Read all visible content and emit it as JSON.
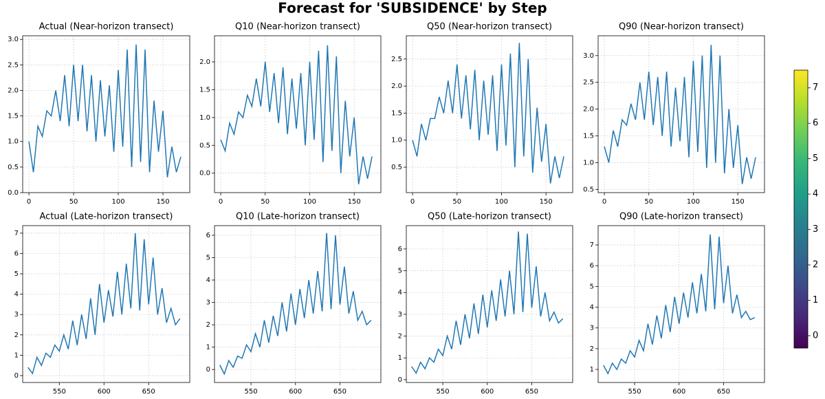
{
  "title": "Forecast for 'SUBSIDENCE' by Step",
  "chart_data": [
    {
      "type": "line",
      "title": "Actual (Near-horizon transect)",
      "color": "#1f77b4",
      "grid": true,
      "x": [
        0,
        5,
        10,
        15,
        20,
        25,
        30,
        35,
        40,
        45,
        50,
        55,
        60,
        65,
        70,
        75,
        80,
        85,
        90,
        95,
        100,
        105,
        110,
        115,
        120,
        125,
        130,
        135,
        140,
        145,
        150,
        155,
        160,
        165,
        170
      ],
      "values": [
        1.0,
        0.4,
        1.3,
        1.1,
        1.6,
        1.5,
        2.0,
        1.4,
        2.3,
        1.3,
        2.5,
        1.4,
        2.5,
        1.2,
        2.3,
        1.0,
        2.2,
        1.1,
        2.1,
        0.8,
        2.4,
        0.9,
        2.8,
        0.5,
        2.9,
        0.6,
        2.8,
        0.4,
        1.8,
        0.8,
        1.6,
        0.3,
        0.9,
        0.4,
        0.7
      ],
      "xlim": [
        -7,
        180
      ],
      "xticks": [
        0,
        50,
        100,
        150
      ],
      "ylim": [
        0,
        3.07
      ],
      "yticks": [
        {
          "value": 0,
          "label": "0.0"
        },
        {
          "value": 0.5,
          "label": "0.5"
        },
        {
          "value": 1,
          "label": "1.0"
        },
        {
          "value": 1.5,
          "label": "1.5"
        },
        {
          "value": 2,
          "label": "2.0"
        },
        {
          "value": 2.5,
          "label": "2.5"
        },
        {
          "value": 3,
          "label": "3.0"
        }
      ]
    },
    {
      "type": "line",
      "title": "Q10 (Near-horizon transect)",
      "color": "#1f77b4",
      "grid": true,
      "x": [
        0,
        5,
        10,
        15,
        20,
        25,
        30,
        35,
        40,
        45,
        50,
        55,
        60,
        65,
        70,
        75,
        80,
        85,
        90,
        95,
        100,
        105,
        110,
        115,
        120,
        125,
        130,
        135,
        140,
        145,
        150,
        155,
        160,
        165,
        170
      ],
      "values": [
        0.6,
        0.4,
        0.9,
        0.7,
        1.1,
        1.0,
        1.4,
        1.2,
        1.7,
        1.2,
        2.0,
        1.1,
        1.8,
        0.9,
        1.9,
        0.7,
        1.7,
        0.8,
        1.8,
        0.5,
        2.0,
        0.6,
        2.2,
        0.2,
        2.3,
        0.4,
        2.1,
        0.0,
        1.3,
        0.3,
        1.0,
        -0.2,
        0.3,
        -0.1,
        0.3
      ],
      "xlim": [
        -7,
        180
      ],
      "xticks": [
        0,
        50,
        100,
        150
      ],
      "ylim": [
        -0.35,
        2.47
      ],
      "yticks": [
        {
          "value": 0,
          "label": "0.0"
        },
        {
          "value": 0.5,
          "label": "0.5"
        },
        {
          "value": 1,
          "label": "1.0"
        },
        {
          "value": 1.5,
          "label": "1.5"
        },
        {
          "value": 2,
          "label": "2.0"
        }
      ]
    },
    {
      "type": "line",
      "title": "Q50 (Near-horizon transect)",
      "color": "#1f77b4",
      "grid": true,
      "x": [
        0,
        5,
        10,
        15,
        20,
        25,
        30,
        35,
        40,
        45,
        50,
        55,
        60,
        65,
        70,
        75,
        80,
        85,
        90,
        95,
        100,
        105,
        110,
        115,
        120,
        125,
        130,
        135,
        140,
        145,
        150,
        155,
        160,
        165,
        170
      ],
      "values": [
        1.0,
        0.7,
        1.3,
        1.0,
        1.4,
        1.4,
        1.8,
        1.5,
        2.1,
        1.5,
        2.4,
        1.4,
        2.2,
        1.2,
        2.3,
        1.0,
        2.1,
        1.1,
        2.2,
        0.8,
        2.4,
        0.9,
        2.6,
        0.5,
        2.8,
        0.7,
        2.5,
        0.4,
        1.6,
        0.6,
        1.3,
        0.2,
        0.7,
        0.3,
        0.7
      ],
      "xlim": [
        -7,
        180
      ],
      "xticks": [
        0,
        50,
        100,
        150
      ],
      "ylim": [
        0.03,
        2.93
      ],
      "yticks": [
        {
          "value": 0.5,
          "label": "0.5"
        },
        {
          "value": 1,
          "label": "1.0"
        },
        {
          "value": 1.5,
          "label": "1.5"
        },
        {
          "value": 2,
          "label": "2.0"
        },
        {
          "value": 2.5,
          "label": "2.5"
        }
      ]
    },
    {
      "type": "line",
      "title": "Q90 (Near-horizon transect)",
      "color": "#1f77b4",
      "grid": true,
      "x": [
        0,
        5,
        10,
        15,
        20,
        25,
        30,
        35,
        40,
        45,
        50,
        55,
        60,
        65,
        70,
        75,
        80,
        85,
        90,
        95,
        100,
        105,
        110,
        115,
        120,
        125,
        130,
        135,
        140,
        145,
        150,
        155,
        160,
        165,
        170
      ],
      "values": [
        1.3,
        1.0,
        1.6,
        1.3,
        1.8,
        1.7,
        2.1,
        1.8,
        2.5,
        1.8,
        2.7,
        1.7,
        2.6,
        1.5,
        2.7,
        1.3,
        2.4,
        1.4,
        2.6,
        1.1,
        2.9,
        1.2,
        3.0,
        0.9,
        3.2,
        1.0,
        3.0,
        0.8,
        2.0,
        0.9,
        1.7,
        0.6,
        1.1,
        0.7,
        1.1
      ],
      "xlim": [
        -7,
        180
      ],
      "xticks": [
        0,
        50,
        100,
        150
      ],
      "ylim": [
        0.44,
        3.37
      ],
      "yticks": [
        {
          "value": 0.5,
          "label": "0.5"
        },
        {
          "value": 1,
          "label": "1.0"
        },
        {
          "value": 1.5,
          "label": "1.5"
        },
        {
          "value": 2,
          "label": "2.0"
        },
        {
          "value": 2.5,
          "label": "2.5"
        },
        {
          "value": 3,
          "label": "3.0"
        }
      ]
    },
    {
      "type": "line",
      "title": "Actual (Late-horizon transect)",
      "color": "#1f77b4",
      "grid": true,
      "x": [
        515,
        520,
        525,
        530,
        535,
        540,
        545,
        550,
        555,
        560,
        565,
        570,
        575,
        580,
        585,
        590,
        595,
        600,
        605,
        610,
        615,
        620,
        625,
        630,
        635,
        640,
        645,
        650,
        655,
        660,
        665,
        670,
        675,
        680,
        685
      ],
      "values": [
        0.4,
        0.1,
        0.9,
        0.5,
        1.1,
        0.9,
        1.5,
        1.2,
        2.0,
        1.3,
        2.7,
        1.5,
        3.0,
        1.8,
        3.8,
        2.0,
        4.5,
        2.6,
        4.2,
        2.9,
        5.1,
        3.0,
        5.5,
        3.3,
        7.0,
        3.2,
        6.7,
        3.5,
        5.8,
        3.0,
        4.3,
        2.6,
        3.3,
        2.5,
        2.8
      ],
      "xlim": [
        509,
        696
      ],
      "xticks": [
        550,
        600,
        650
      ],
      "ylim": [
        -0.34,
        7.37
      ],
      "yticks": [
        0,
        1,
        2,
        3,
        4,
        5,
        6,
        7
      ]
    },
    {
      "type": "line",
      "title": "Q10 (Late-horizon transect)",
      "color": "#1f77b4",
      "grid": true,
      "x": [
        515,
        520,
        525,
        530,
        535,
        540,
        545,
        550,
        555,
        560,
        565,
        570,
        575,
        580,
        585,
        590,
        595,
        600,
        605,
        610,
        615,
        620,
        625,
        630,
        635,
        640,
        645,
        650,
        655,
        660,
        665,
        670,
        675,
        680,
        685
      ],
      "values": [
        0.2,
        -0.2,
        0.4,
        0.1,
        0.6,
        0.5,
        1.1,
        0.8,
        1.6,
        1.0,
        2.2,
        1.2,
        2.4,
        1.5,
        3.0,
        1.7,
        3.4,
        2.0,
        3.6,
        2.3,
        4.0,
        2.5,
        4.4,
        2.6,
        6.1,
        2.7,
        6.0,
        2.9,
        4.6,
        2.5,
        3.5,
        2.2,
        2.6,
        2.0,
        2.2
      ],
      "xlim": [
        509,
        696
      ],
      "xticks": [
        550,
        600,
        650
      ],
      "ylim": [
        -0.58,
        6.43
      ],
      "yticks": [
        0,
        1,
        2,
        3,
        4,
        5,
        6
      ]
    },
    {
      "type": "line",
      "title": "Q50 (Late-horizon transect)",
      "color": "#1f77b4",
      "grid": true,
      "x": [
        515,
        520,
        525,
        530,
        535,
        540,
        545,
        550,
        555,
        560,
        565,
        570,
        575,
        580,
        585,
        590,
        595,
        600,
        605,
        610,
        615,
        620,
        625,
        630,
        635,
        640,
        645,
        650,
        655,
        660,
        665,
        670,
        675,
        680,
        685
      ],
      "values": [
        0.6,
        0.3,
        0.8,
        0.5,
        1.0,
        0.8,
        1.4,
        1.1,
        2.0,
        1.4,
        2.7,
        1.6,
        3.0,
        1.9,
        3.5,
        2.1,
        3.9,
        2.4,
        4.1,
        2.7,
        4.6,
        2.9,
        5.0,
        3.0,
        6.8,
        3.1,
        6.7,
        3.3,
        5.2,
        2.9,
        4.0,
        2.7,
        3.1,
        2.6,
        2.8
      ],
      "xlim": [
        509,
        696
      ],
      "xticks": [
        550,
        600,
        650
      ],
      "ylim": [
        -0.13,
        7.07
      ],
      "yticks": [
        0,
        1,
        2,
        3,
        4,
        5,
        6
      ]
    },
    {
      "type": "line",
      "title": "Q90 (Late-horizon transect)",
      "color": "#1f77b4",
      "grid": true,
      "x": [
        515,
        520,
        525,
        530,
        535,
        540,
        545,
        550,
        555,
        560,
        565,
        570,
        575,
        580,
        585,
        590,
        595,
        600,
        605,
        610,
        615,
        620,
        625,
        630,
        635,
        640,
        645,
        650,
        655,
        660,
        665,
        670,
        675,
        680,
        685
      ],
      "values": [
        1.2,
        0.8,
        1.3,
        1.0,
        1.5,
        1.3,
        1.9,
        1.6,
        2.4,
        1.9,
        3.2,
        2.2,
        3.6,
        2.5,
        4.1,
        2.8,
        4.5,
        3.2,
        4.7,
        3.5,
        5.2,
        3.7,
        5.6,
        3.8,
        7.5,
        3.9,
        7.4,
        4.2,
        6.0,
        3.7,
        4.6,
        3.5,
        3.8,
        3.4,
        3.5
      ],
      "xlim": [
        509,
        696
      ],
      "xticks": [
        550,
        600,
        650
      ],
      "ylim": [
        0.37,
        7.93
      ],
      "yticks": [
        1,
        2,
        3,
        4,
        5,
        6,
        7
      ]
    },
    {
      "type": "colorbar",
      "colormap": "viridis",
      "ylim": [
        -0.35,
        7.5
      ],
      "yticks": [
        0,
        1,
        2,
        3,
        4,
        5,
        6,
        7
      ]
    }
  ]
}
